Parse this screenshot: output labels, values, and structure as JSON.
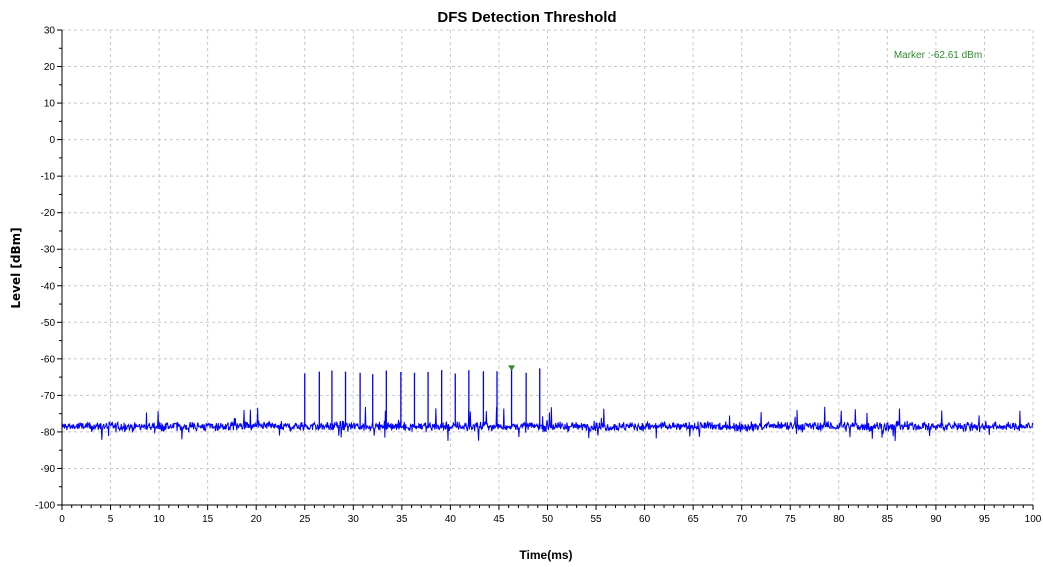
{
  "chart_data": {
    "type": "line",
    "title": "DFS Detection Threshold",
    "xlabel": "Time(ms)",
    "ylabel": "Level [dBm]",
    "xlim": [
      0,
      100
    ],
    "ylim": [
      -100,
      30
    ],
    "x_ticks": [
      "0",
      "5",
      "10",
      "15",
      "20",
      "25",
      "30",
      "35",
      "40",
      "45",
      "50",
      "55",
      "60",
      "65",
      "70",
      "75",
      "80",
      "85",
      "90",
      "95",
      "100"
    ],
    "y_ticks": [
      "30",
      "20",
      "10",
      "0",
      "-10",
      "-20",
      "-30",
      "-40",
      "-50",
      "-60",
      "-70",
      "-80",
      "-90",
      "-100"
    ],
    "grid": true,
    "series": [
      {
        "color": "#0000ff",
        "noise_floor_dbm": -78.5,
        "pulses": [
          {
            "x": 25.0,
            "y": -64.0
          },
          {
            "x": 26.5,
            "y": -63.5
          },
          {
            "x": 27.8,
            "y": -63.2
          },
          {
            "x": 29.2,
            "y": -63.5
          },
          {
            "x": 30.7,
            "y": -63.8
          },
          {
            "x": 32.0,
            "y": -64.2
          },
          {
            "x": 33.4,
            "y": -63.2
          },
          {
            "x": 34.9,
            "y": -63.6
          },
          {
            "x": 36.3,
            "y": -63.8
          },
          {
            "x": 37.7,
            "y": -63.6
          },
          {
            "x": 39.1,
            "y": -63.1
          },
          {
            "x": 40.5,
            "y": -64.0
          },
          {
            "x": 41.9,
            "y": -63.1
          },
          {
            "x": 43.4,
            "y": -63.4
          },
          {
            "x": 44.8,
            "y": -63.4
          },
          {
            "x": 46.3,
            "y": -62.6
          },
          {
            "x": 47.8,
            "y": -63.8
          },
          {
            "x": 49.2,
            "y": -62.6
          }
        ]
      }
    ],
    "marker": {
      "x": 46.3,
      "y": -62.61,
      "label": "Marker :-62.61 dBm",
      "color": "#2e8b2e",
      "label_position": "top-right"
    }
  }
}
